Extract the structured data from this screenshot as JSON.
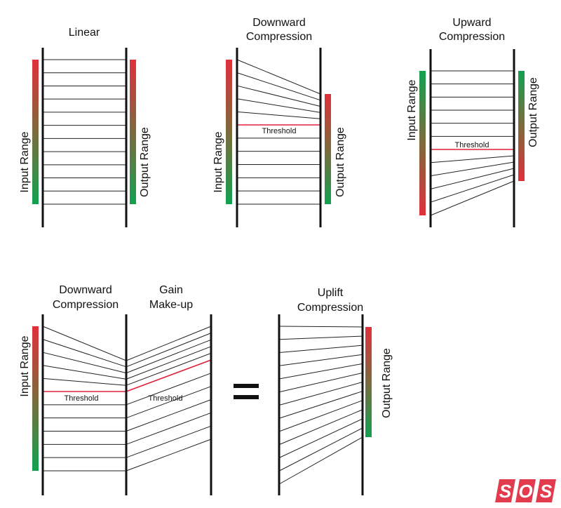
{
  "panels": {
    "linear": {
      "title": [
        "Linear"
      ],
      "input_label": "Input Range",
      "output_label": "Output Range"
    },
    "downward": {
      "title": [
        "Downward",
        "Compression"
      ],
      "input_label": "Input Range",
      "output_label": "Output Range",
      "threshold_label": "Threshold"
    },
    "upward": {
      "title": [
        "Upward",
        "Compression"
      ],
      "input_label": "Input Range",
      "output_label": "Output Range",
      "threshold_label": "Threshold"
    },
    "downward2": {
      "title": [
        "Downward",
        "Compression"
      ],
      "input_label": "Input Range",
      "threshold_label": "Threshold"
    },
    "gain": {
      "title": [
        "Gain",
        "Make-up"
      ],
      "threshold_label": "Threshold"
    },
    "equals": {
      "symbol": "="
    },
    "uplift": {
      "title": [
        "Uplift",
        "Compression"
      ],
      "output_label": "Output Range"
    }
  },
  "logo": {
    "text": "SOS",
    "color": "#e23b4e"
  },
  "colors": {
    "range_red": "#e0303a",
    "range_green": "#12a150",
    "threshold": "#e0203a"
  }
}
